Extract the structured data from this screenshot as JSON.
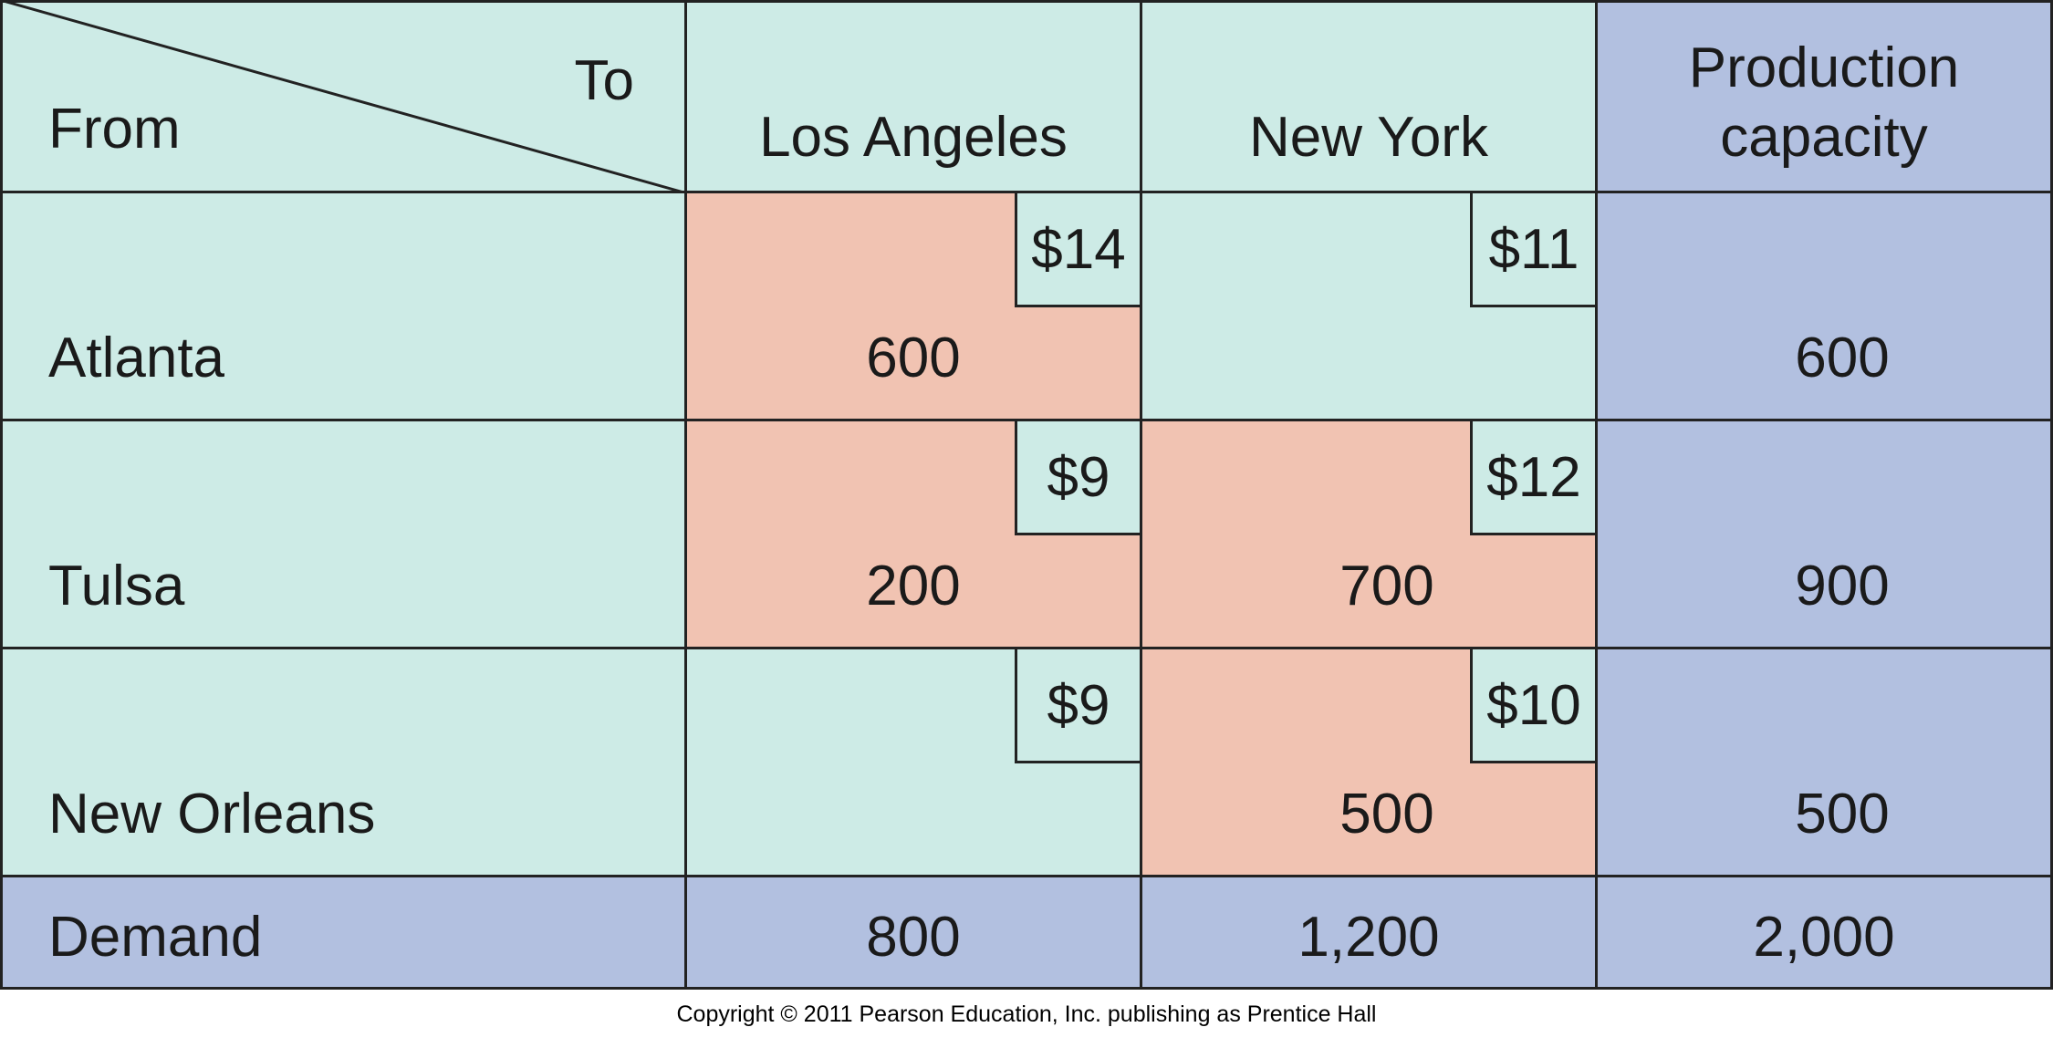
{
  "header": {
    "from_label": "From",
    "to_label": "To",
    "columns": [
      "Los Angeles",
      "New York"
    ],
    "capacity_label_line1": "Production",
    "capacity_label_line2": "capacity"
  },
  "rows": [
    {
      "label": "Atlanta",
      "la_cost": "$14",
      "la_qty": "600",
      "ny_cost": "$11",
      "ny_qty": "",
      "capacity": "600"
    },
    {
      "label": "Tulsa",
      "la_cost": "$9",
      "la_qty": "200",
      "ny_cost": "$12",
      "ny_qty": "700",
      "capacity": "900"
    },
    {
      "label": "New Orleans",
      "la_cost": "$9",
      "la_qty": "",
      "ny_cost": "$10",
      "ny_qty": "500",
      "capacity": "500"
    }
  ],
  "demand": {
    "label": "Demand",
    "la": "800",
    "ny": "1,200",
    "total": "2,000"
  },
  "footer": {
    "copyright": "Copyright © 2011 Pearson Education, Inc. publishing as Prentice Hall"
  },
  "colors": {
    "unused_cell": "#cdebe6",
    "allocated_cell": "#f1c3b2",
    "totals": "#b2c0e0"
  }
}
